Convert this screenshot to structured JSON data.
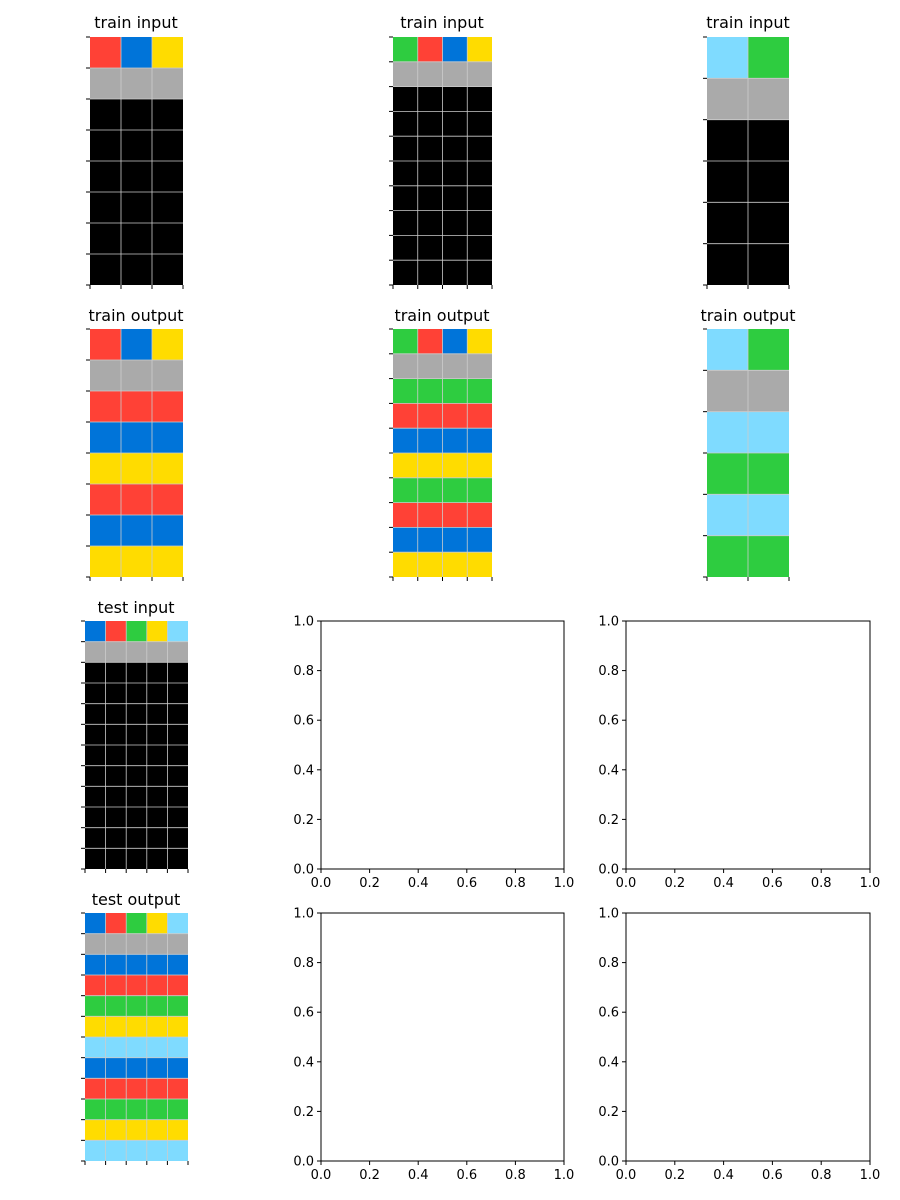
{
  "palette": {
    "0": "#000000",
    "1": "#0074D9",
    "2": "#FF4136",
    "3": "#2ECC40",
    "4": "#FFDC00",
    "5": "#AAAAAA",
    "8": "#7FDBFF"
  },
  "grid_line_color": "#cccccc",
  "panels": [
    {
      "title": "train input",
      "grid": [
        [
          2,
          1,
          4
        ],
        [
          5,
          5,
          5
        ],
        [
          0,
          0,
          0
        ],
        [
          0,
          0,
          0
        ],
        [
          0,
          0,
          0
        ],
        [
          0,
          0,
          0
        ],
        [
          0,
          0,
          0
        ],
        [
          0,
          0,
          0
        ]
      ]
    },
    {
      "title": "train input",
      "grid": [
        [
          3,
          2,
          1,
          4
        ],
        [
          5,
          5,
          5,
          5
        ],
        [
          0,
          0,
          0,
          0
        ],
        [
          0,
          0,
          0,
          0
        ],
        [
          0,
          0,
          0,
          0
        ],
        [
          0,
          0,
          0,
          0
        ],
        [
          0,
          0,
          0,
          0
        ],
        [
          0,
          0,
          0,
          0
        ],
        [
          0,
          0,
          0,
          0
        ],
        [
          0,
          0,
          0,
          0
        ]
      ]
    },
    {
      "title": "train input",
      "grid": [
        [
          8,
          3
        ],
        [
          5,
          5
        ],
        [
          0,
          0
        ],
        [
          0,
          0
        ],
        [
          0,
          0
        ],
        [
          0,
          0
        ]
      ]
    },
    {
      "title": "train output",
      "grid": [
        [
          2,
          1,
          4
        ],
        [
          5,
          5,
          5
        ],
        [
          2,
          2,
          2
        ],
        [
          1,
          1,
          1
        ],
        [
          4,
          4,
          4
        ],
        [
          2,
          2,
          2
        ],
        [
          1,
          1,
          1
        ],
        [
          4,
          4,
          4
        ]
      ]
    },
    {
      "title": "train output",
      "grid": [
        [
          3,
          2,
          1,
          4
        ],
        [
          5,
          5,
          5,
          5
        ],
        [
          3,
          3,
          3,
          3
        ],
        [
          2,
          2,
          2,
          2
        ],
        [
          1,
          1,
          1,
          1
        ],
        [
          4,
          4,
          4,
          4
        ],
        [
          3,
          3,
          3,
          3
        ],
        [
          2,
          2,
          2,
          2
        ],
        [
          1,
          1,
          1,
          1
        ],
        [
          4,
          4,
          4,
          4
        ]
      ]
    },
    {
      "title": "train output",
      "grid": [
        [
          8,
          3
        ],
        [
          5,
          5
        ],
        [
          8,
          8
        ],
        [
          3,
          3
        ],
        [
          8,
          8
        ],
        [
          3,
          3
        ]
      ]
    },
    {
      "title": "test input",
      "grid": [
        [
          1,
          2,
          3,
          4,
          8
        ],
        [
          5,
          5,
          5,
          5,
          5
        ],
        [
          0,
          0,
          0,
          0,
          0
        ],
        [
          0,
          0,
          0,
          0,
          0
        ],
        [
          0,
          0,
          0,
          0,
          0
        ],
        [
          0,
          0,
          0,
          0,
          0
        ],
        [
          0,
          0,
          0,
          0,
          0
        ],
        [
          0,
          0,
          0,
          0,
          0
        ],
        [
          0,
          0,
          0,
          0,
          0
        ],
        [
          0,
          0,
          0,
          0,
          0
        ],
        [
          0,
          0,
          0,
          0,
          0
        ],
        [
          0,
          0,
          0,
          0,
          0
        ]
      ]
    },
    {
      "title": "test output",
      "grid": [
        [
          1,
          2,
          3,
          4,
          8
        ],
        [
          5,
          5,
          5,
          5,
          5
        ],
        [
          1,
          1,
          1,
          1,
          1
        ],
        [
          2,
          2,
          2,
          2,
          2
        ],
        [
          3,
          3,
          3,
          3,
          3
        ],
        [
          4,
          4,
          4,
          4,
          4
        ],
        [
          8,
          8,
          8,
          8,
          8
        ],
        [
          1,
          1,
          1,
          1,
          1
        ],
        [
          2,
          2,
          2,
          2,
          2
        ],
        [
          3,
          3,
          3,
          3,
          3
        ],
        [
          4,
          4,
          4,
          4,
          4
        ],
        [
          8,
          8,
          8,
          8,
          8
        ]
      ]
    }
  ],
  "empty_axes": {
    "x_ticks": [
      "0.0",
      "0.2",
      "0.4",
      "0.6",
      "0.8",
      "1.0"
    ],
    "y_ticks": [
      "0.0",
      "0.2",
      "0.4",
      "0.6",
      "0.8",
      "1.0"
    ]
  }
}
